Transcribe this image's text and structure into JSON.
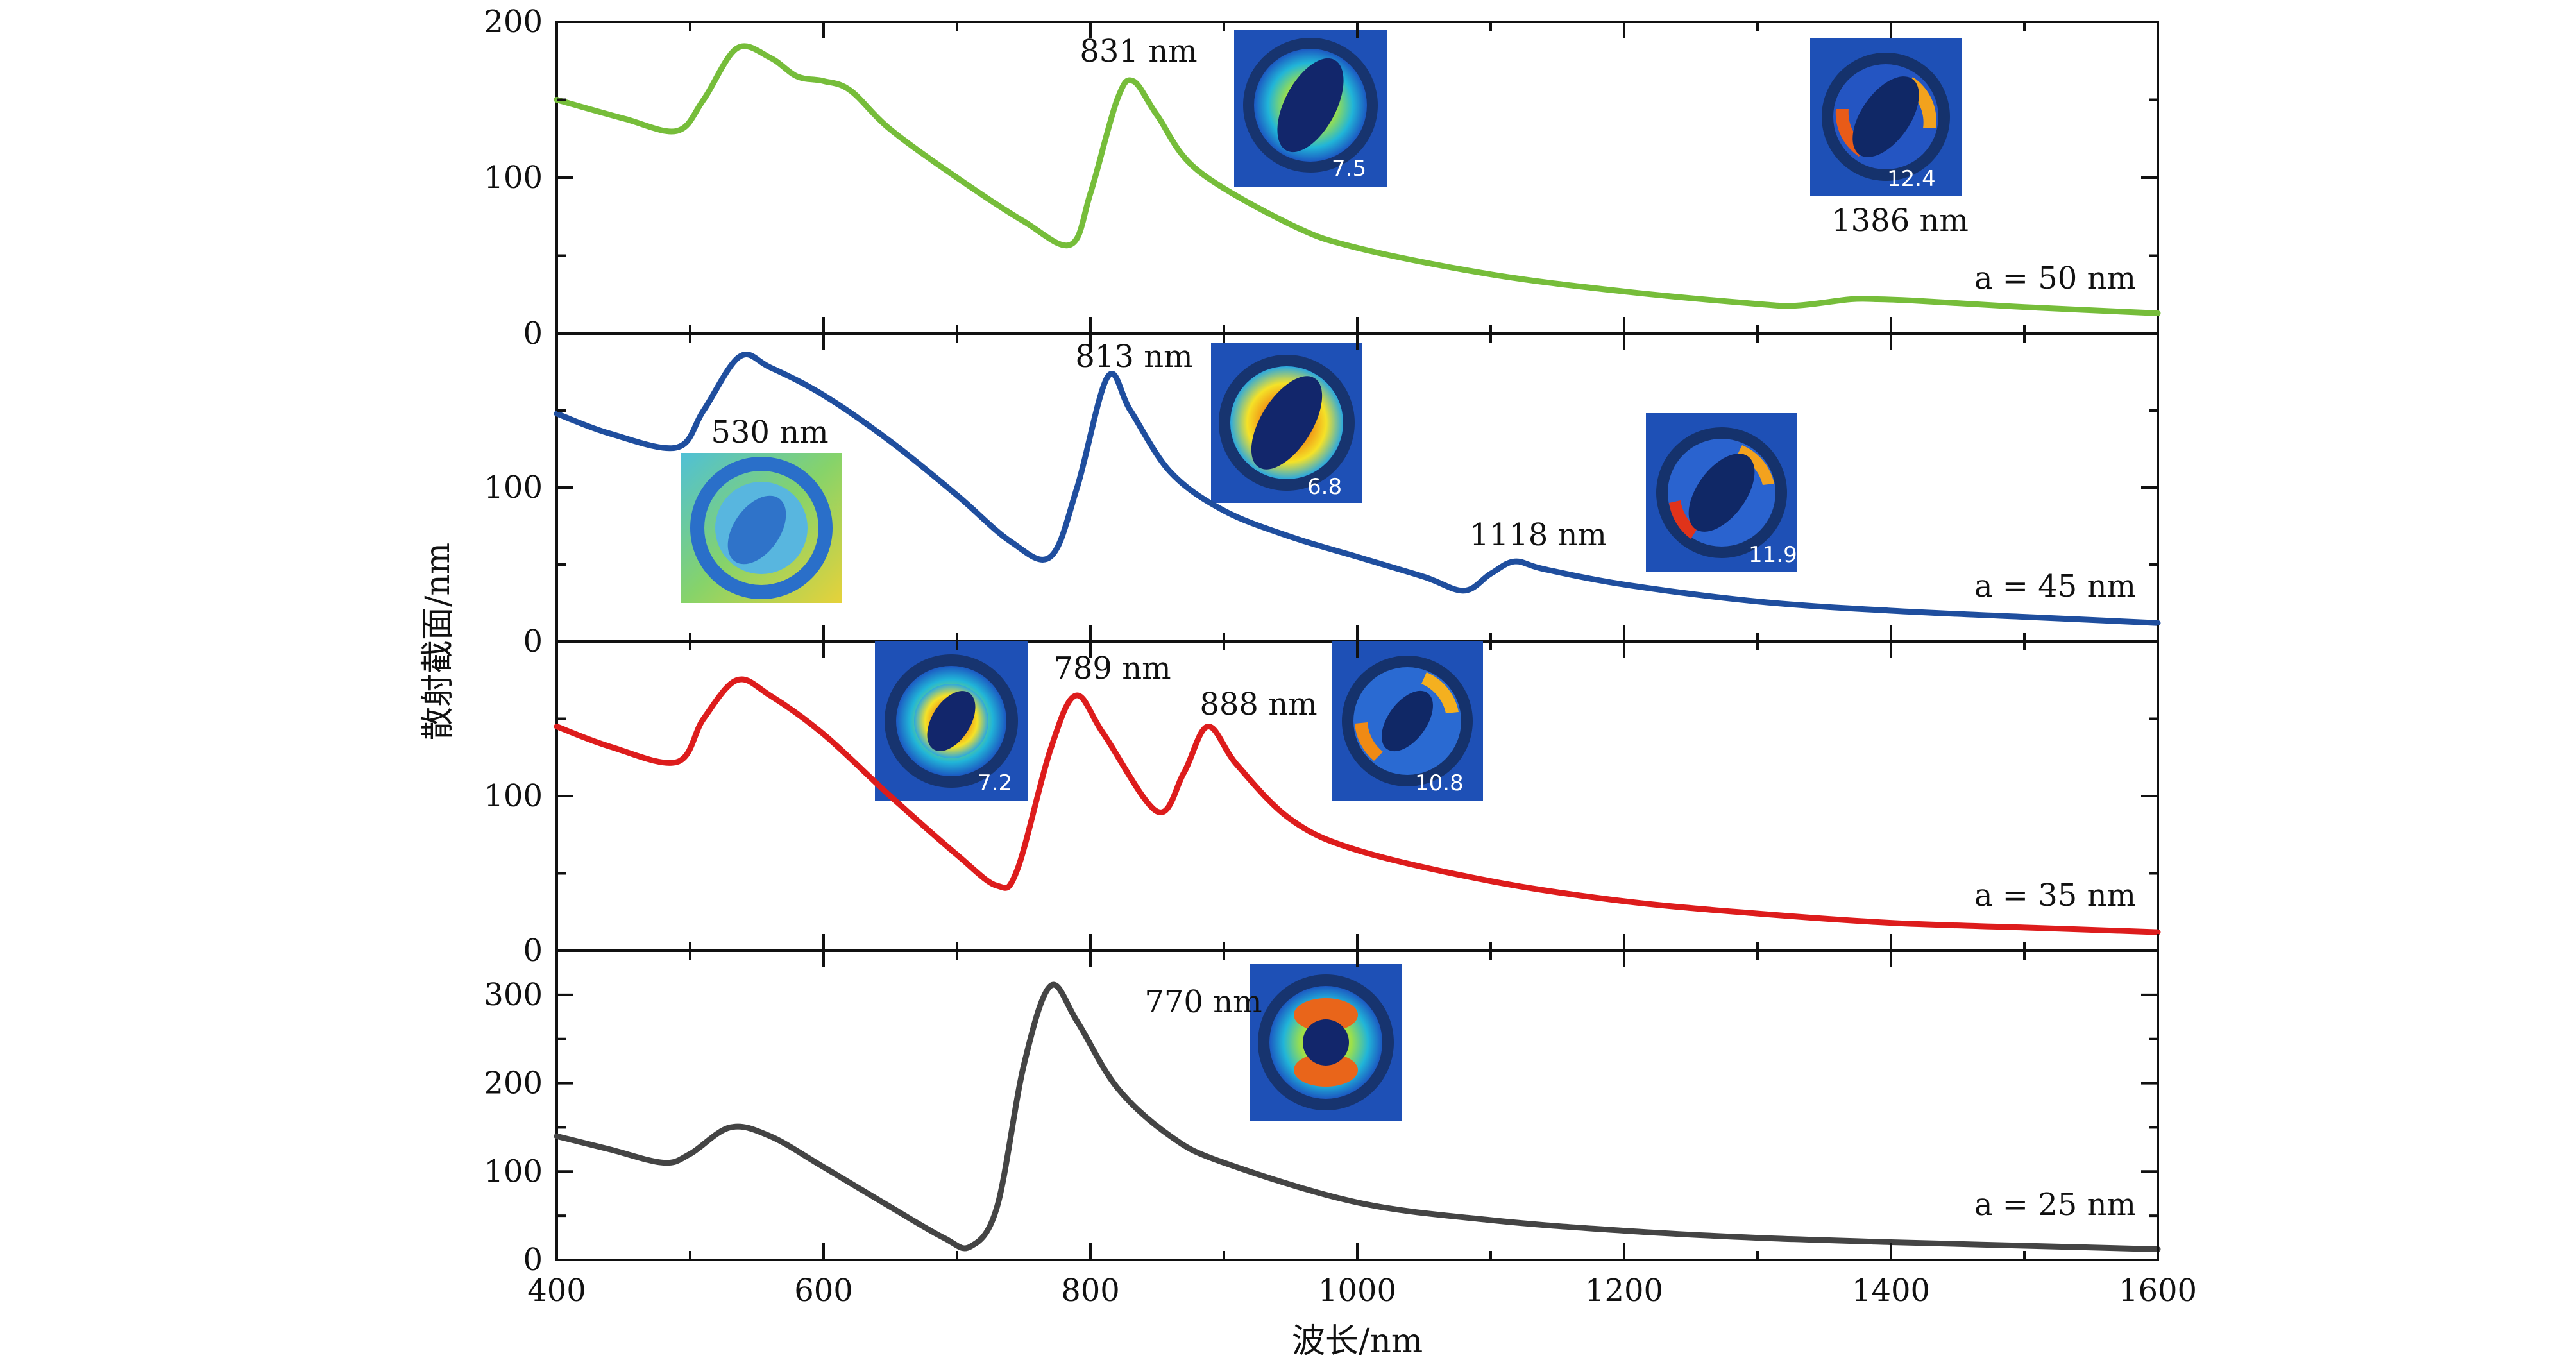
{
  "chart_data": {
    "type": "line",
    "xlabel": "波长/nm",
    "ylabel": "散射截面/nm",
    "xlim": [
      400,
      1600
    ],
    "x_ticks": [
      400,
      600,
      800,
      1000,
      1200,
      1400,
      1600
    ],
    "panels": [
      {
        "id": "a50",
        "label": "a = 50 nm",
        "color": "#76bd3a",
        "ylim": [
          0,
          200
        ],
        "y_ticks": [
          0,
          100,
          200
        ],
        "x": [
          400,
          450,
          490,
          510,
          535,
          560,
          580,
          600,
          620,
          650,
          700,
          750,
          785,
          800,
          820,
          832,
          850,
          880,
          950,
          1000,
          1100,
          1200,
          1300,
          1330,
          1370,
          1390,
          1420,
          1500,
          1600
        ],
        "y": [
          150,
          138,
          130,
          150,
          183,
          177,
          165,
          162,
          156,
          131,
          100,
          72,
          57,
          90,
          150,
          162,
          140,
          105,
          70,
          55,
          38,
          27,
          19,
          18,
          22,
          22,
          21,
          17,
          13
        ],
        "peaks": [
          {
            "label": "831 nm",
            "value": "7.5"
          },
          {
            "label": "1386 nm",
            "value": "12.4"
          }
        ]
      },
      {
        "id": "a45",
        "label": "a = 45 nm",
        "color": "#1f4e9e",
        "ylim": [
          0,
          200
        ],
        "y_ticks": [
          0,
          100
        ],
        "x": [
          400,
          440,
          490,
          510,
          537,
          560,
          600,
          650,
          700,
          740,
          770,
          790,
          813,
          830,
          860,
          900,
          950,
          1000,
          1050,
          1080,
          1100,
          1118,
          1140,
          1200,
          1300,
          1400,
          1500,
          1600
        ],
        "y": [
          148,
          135,
          126,
          150,
          185,
          178,
          160,
          130,
          95,
          65,
          55,
          100,
          172,
          150,
          110,
          85,
          68,
          55,
          42,
          33,
          44,
          52,
          47,
          37,
          26,
          20,
          16,
          12
        ],
        "peaks": [
          {
            "label": "530 nm",
            "value": ""
          },
          {
            "label": "813 nm",
            "value": "6.8"
          },
          {
            "label": "1118 nm",
            "value": "11.9"
          }
        ]
      },
      {
        "id": "a35",
        "label": "a = 35 nm",
        "color": "#dd1c1c",
        "ylim": [
          0,
          200
        ],
        "y_ticks": [
          0,
          100
        ],
        "x": [
          400,
          440,
          490,
          510,
          535,
          560,
          600,
          650,
          700,
          730,
          745,
          770,
          789,
          810,
          850,
          870,
          888,
          910,
          950,
          1000,
          1100,
          1200,
          1300,
          1400,
          1500,
          1600
        ],
        "y": [
          145,
          132,
          122,
          150,
          175,
          165,
          140,
          100,
          62,
          42,
          52,
          130,
          165,
          140,
          90,
          115,
          145,
          120,
          85,
          65,
          45,
          32,
          24,
          18,
          15,
          12
        ],
        "peaks": [
          {
            "label": "789 nm",
            "value": "7.2"
          },
          {
            "label": "888 nm",
            "value": "10.8"
          }
        ]
      },
      {
        "id": "a25",
        "label": "a = 25 nm",
        "color": "#444444",
        "ylim": [
          0,
          350
        ],
        "y_ticks": [
          0,
          100,
          200,
          300
        ],
        "x": [
          400,
          440,
          480,
          500,
          530,
          560,
          600,
          650,
          690,
          710,
          730,
          750,
          770,
          790,
          820,
          860,
          900,
          1000,
          1100,
          1200,
          1300,
          1400,
          1500,
          1600
        ],
        "y": [
          140,
          125,
          110,
          120,
          150,
          140,
          105,
          60,
          25,
          15,
          60,
          220,
          310,
          270,
          195,
          140,
          110,
          65,
          45,
          33,
          25,
          20,
          16,
          12
        ],
        "peaks": [
          {
            "label": "770 nm",
            "value": ""
          }
        ]
      }
    ]
  }
}
